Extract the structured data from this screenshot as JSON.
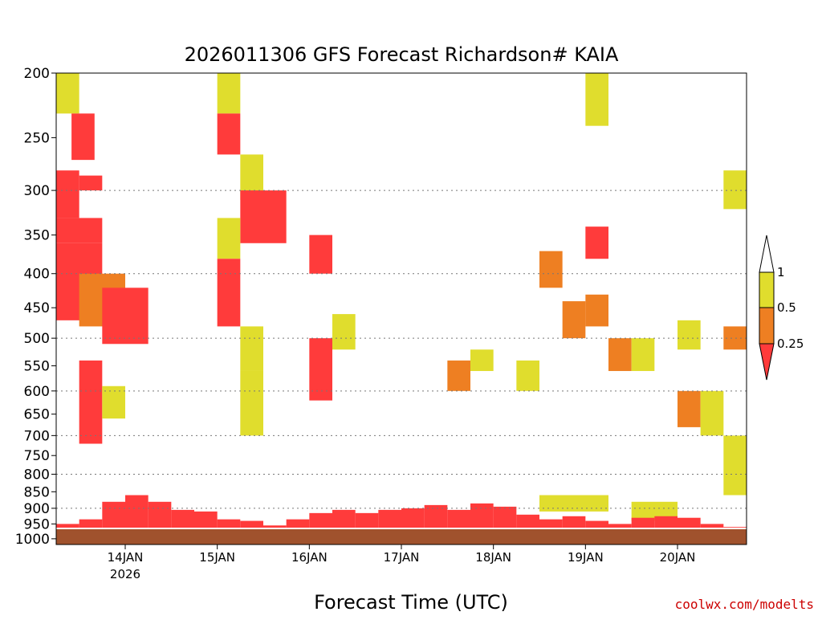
{
  "chart_data": {
    "type": "heatmap",
    "title": "2026011306 GFS Forecast Richardson# KAIA",
    "xlabel": "Forecast Time (UTC)",
    "ylabel": "",
    "credit": "coolwx.com/modelts",
    "y_scale": "log",
    "ylim": [
      1020,
      200
    ],
    "yticks": [
      200,
      250,
      300,
      350,
      400,
      450,
      500,
      550,
      600,
      650,
      700,
      750,
      800,
      850,
      900,
      950,
      1000
    ],
    "dotted_gridlines": [
      300,
      400,
      500,
      600,
      700,
      800,
      900
    ],
    "xlim": [
      "13JAN 06",
      "20JAN 18"
    ],
    "xticks": [
      {
        "label": "14JAN",
        "sub": "2026",
        "time": "14JAN 00"
      },
      {
        "label": "15JAN",
        "sub": "",
        "time": "15JAN 00"
      },
      {
        "label": "16JAN",
        "sub": "",
        "time": "16JAN 00"
      },
      {
        "label": "17JAN",
        "sub": "",
        "time": "17JAN 00"
      },
      {
        "label": "18JAN",
        "sub": "",
        "time": "18JAN 00"
      },
      {
        "label": "19JAN",
        "sub": "",
        "time": "19JAN 00"
      },
      {
        "label": "20JAN",
        "sub": "",
        "time": "20JAN 00"
      }
    ],
    "colorbar": {
      "levels": [
        "1",
        "0.5",
        "0.25"
      ],
      "colors": {
        "0.5-1": "#e0dd2d",
        "0.25-0.5": "#ee7f22",
        "below 0.25": "#ff3b3b"
      }
    },
    "colors": {
      "low": "#ff3b3b",
      "mid": "#ee7f22",
      "high": "#e0dd2d",
      "ground": "#a0522d"
    },
    "class_legend": {
      "1": "Ri < 0.25",
      "2": "0.25 <= Ri < 0.5",
      "3": "0.5 <= Ri < 1"
    },
    "surface_pressure_hpa": 965,
    "boundary_layer": [
      {
        "x": [
          "13JAN 06",
          "13JAN 12"
        ],
        "top": 950,
        "class": 1
      },
      {
        "x": [
          "13JAN 12",
          "13JAN 18"
        ],
        "top": 935,
        "class": 1
      },
      {
        "x": [
          "13JAN 18",
          "14JAN 00"
        ],
        "top": 880,
        "class": 1
      },
      {
        "x": [
          "14JAN 00",
          "14JAN 06"
        ],
        "top": 860,
        "class": 1
      },
      {
        "x": [
          "14JAN 06",
          "14JAN 12"
        ],
        "top": 880,
        "class": 1
      },
      {
        "x": [
          "14JAN 12",
          "14JAN 18"
        ],
        "top": 905,
        "class": 1
      },
      {
        "x": [
          "14JAN 18",
          "15JAN 00"
        ],
        "top": 910,
        "class": 1
      },
      {
        "x": [
          "15JAN 00",
          "15JAN 06"
        ],
        "top": 935,
        "class": 1
      },
      {
        "x": [
          "15JAN 06",
          "15JAN 12"
        ],
        "top": 940,
        "class": 1
      },
      {
        "x": [
          "15JAN 12",
          "15JAN 18"
        ],
        "top": 955,
        "class": 1
      },
      {
        "x": [
          "15JAN 18",
          "16JAN 00"
        ],
        "top": 935,
        "class": 1
      },
      {
        "x": [
          "16JAN 00",
          "16JAN 06"
        ],
        "top": 915,
        "class": 1
      },
      {
        "x": [
          "16JAN 06",
          "16JAN 12"
        ],
        "top": 905,
        "class": 1
      },
      {
        "x": [
          "16JAN 12",
          "16JAN 18"
        ],
        "top": 915,
        "class": 1
      },
      {
        "x": [
          "16JAN 18",
          "17JAN 00"
        ],
        "top": 905,
        "class": 1
      },
      {
        "x": [
          "17JAN 00",
          "17JAN 06"
        ],
        "top": 900,
        "class": 1
      },
      {
        "x": [
          "17JAN 06",
          "17JAN 12"
        ],
        "top": 890,
        "class": 1
      },
      {
        "x": [
          "17JAN 12",
          "17JAN 18"
        ],
        "top": 905,
        "class": 1
      },
      {
        "x": [
          "17JAN 18",
          "18JAN 00"
        ],
        "top": 885,
        "class": 1
      },
      {
        "x": [
          "18JAN 00",
          "18JAN 06"
        ],
        "top": 895,
        "class": 1
      },
      {
        "x": [
          "18JAN 06",
          "18JAN 12"
        ],
        "top": 920,
        "class": 1
      },
      {
        "x": [
          "18JAN 12",
          "18JAN 18"
        ],
        "top": 935,
        "class": 1
      },
      {
        "x": [
          "18JAN 18",
          "19JAN 00"
        ],
        "top": 925,
        "class": 1
      },
      {
        "x": [
          "19JAN 00",
          "19JAN 06"
        ],
        "top": 940,
        "class": 1
      },
      {
        "x": [
          "19JAN 06",
          "19JAN 12"
        ],
        "top": 950,
        "class": 1
      },
      {
        "x": [
          "19JAN 12",
          "19JAN 18"
        ],
        "top": 930,
        "class": 1
      },
      {
        "x": [
          "19JAN 18",
          "20JAN 00"
        ],
        "top": 925,
        "class": 1
      },
      {
        "x": [
          "20JAN 00",
          "20JAN 06"
        ],
        "top": 930,
        "class": 1
      },
      {
        "x": [
          "20JAN 06",
          "20JAN 12"
        ],
        "top": 950,
        "class": 1
      },
      {
        "x": [
          "20JAN 12",
          "20JAN 18"
        ],
        "top": 960,
        "class": 1
      }
    ],
    "cells": [
      {
        "x": [
          "13JAN 06",
          "13JAN 12"
        ],
        "p": [
          200,
          230
        ],
        "class": 3
      },
      {
        "x": [
          "13JAN 10",
          "13JAN 16"
        ],
        "p": [
          230,
          270
        ],
        "class": 1
      },
      {
        "x": [
          "13JAN 06",
          "13JAN 12"
        ],
        "p": [
          280,
          330
        ],
        "class": 1
      },
      {
        "x": [
          "13JAN 12",
          "13JAN 18"
        ],
        "p": [
          285,
          300
        ],
        "class": 1
      },
      {
        "x": [
          "13JAN 06",
          "13JAN 18"
        ],
        "p": [
          330,
          360
        ],
        "class": 1
      },
      {
        "x": [
          "13JAN 06",
          "13JAN 18"
        ],
        "p": [
          360,
          470
        ],
        "class": 1
      },
      {
        "x": [
          "13JAN 12",
          "14JAN 00"
        ],
        "p": [
          400,
          480
        ],
        "class": 2
      },
      {
        "x": [
          "13JAN 18",
          "14JAN 06"
        ],
        "p": [
          420,
          510
        ],
        "class": 1
      },
      {
        "x": [
          "13JAN 12",
          "13JAN 18"
        ],
        "p": [
          540,
          720
        ],
        "class": 1
      },
      {
        "x": [
          "13JAN 18",
          "14JAN 00"
        ],
        "p": [
          590,
          660
        ],
        "class": 3
      },
      {
        "x": [
          "15JAN 00",
          "15JAN 06"
        ],
        "p": [
          200,
          230
        ],
        "class": 3
      },
      {
        "x": [
          "15JAN 00",
          "15JAN 06"
        ],
        "p": [
          230,
          265
        ],
        "class": 1
      },
      {
        "x": [
          "15JAN 06",
          "15JAN 12"
        ],
        "p": [
          265,
          310
        ],
        "class": 3
      },
      {
        "x": [
          "15JAN 06",
          "15JAN 18"
        ],
        "p": [
          300,
          360
        ],
        "class": 1
      },
      {
        "x": [
          "15JAN 00",
          "15JAN 06"
        ],
        "p": [
          330,
          380
        ],
        "class": 3
      },
      {
        "x": [
          "15JAN 00",
          "15JAN 06"
        ],
        "p": [
          380,
          480
        ],
        "class": 1
      },
      {
        "x": [
          "15JAN 06",
          "15JAN 12"
        ],
        "p": [
          480,
          560
        ],
        "class": 3
      },
      {
        "x": [
          "15JAN 06",
          "15JAN 12"
        ],
        "p": [
          560,
          700
        ],
        "class": 3
      },
      {
        "x": [
          "16JAN 00",
          "16JAN 06"
        ],
        "p": [
          350,
          400
        ],
        "class": 1
      },
      {
        "x": [
          "16JAN 00",
          "16JAN 06"
        ],
        "p": [
          500,
          620
        ],
        "class": 1
      },
      {
        "x": [
          "16JAN 06",
          "16JAN 12"
        ],
        "p": [
          460,
          520
        ],
        "class": 3
      },
      {
        "x": [
          "17JAN 12",
          "17JAN 18"
        ],
        "p": [
          540,
          600
        ],
        "class": 2
      },
      {
        "x": [
          "17JAN 18",
          "18JAN 00"
        ],
        "p": [
          520,
          560
        ],
        "class": 3
      },
      {
        "x": [
          "18JAN 06",
          "18JAN 12"
        ],
        "p": [
          540,
          600
        ],
        "class": 3
      },
      {
        "x": [
          "18JAN 12",
          "18JAN 18"
        ],
        "p": [
          370,
          420
        ],
        "class": 2
      },
      {
        "x": [
          "18JAN 18",
          "19JAN 00"
        ],
        "p": [
          440,
          500
        ],
        "class": 2
      },
      {
        "x": [
          "19JAN 00",
          "19JAN 06"
        ],
        "p": [
          200,
          240
        ],
        "class": 3
      },
      {
        "x": [
          "19JAN 00",
          "19JAN 06"
        ],
        "p": [
          340,
          380
        ],
        "class": 1
      },
      {
        "x": [
          "19JAN 00",
          "19JAN 06"
        ],
        "p": [
          430,
          480
        ],
        "class": 2
      },
      {
        "x": [
          "19JAN 06",
          "19JAN 12"
        ],
        "p": [
          500,
          560
        ],
        "class": 2
      },
      {
        "x": [
          "19JAN 12",
          "19JAN 18"
        ],
        "p": [
          500,
          560
        ],
        "class": 3
      },
      {
        "x": [
          "20JAN 00",
          "20JAN 06"
        ],
        "p": [
          470,
          520
        ],
        "class": 3
      },
      {
        "x": [
          "20JAN 00",
          "20JAN 06"
        ],
        "p": [
          600,
          680
        ],
        "class": 2
      },
      {
        "x": [
          "20JAN 06",
          "20JAN 12"
        ],
        "p": [
          600,
          700
        ],
        "class": 3
      },
      {
        "x": [
          "20JAN 12",
          "20JAN 18"
        ],
        "p": [
          700,
          860
        ],
        "class": 3
      },
      {
        "x": [
          "20JAN 12",
          "20JAN 18"
        ],
        "p": [
          480,
          520
        ],
        "class": 2
      },
      {
        "x": [
          "20JAN 12",
          "20JAN 18"
        ],
        "p": [
          280,
          320
        ],
        "class": 3
      },
      {
        "x": [
          "19JAN 12",
          "20JAN 00"
        ],
        "p": [
          880,
          940
        ],
        "class": 3
      },
      {
        "x": [
          "18JAN 12",
          "19JAN 06"
        ],
        "p": [
          860,
          910
        ],
        "class": 3
      }
    ]
  }
}
